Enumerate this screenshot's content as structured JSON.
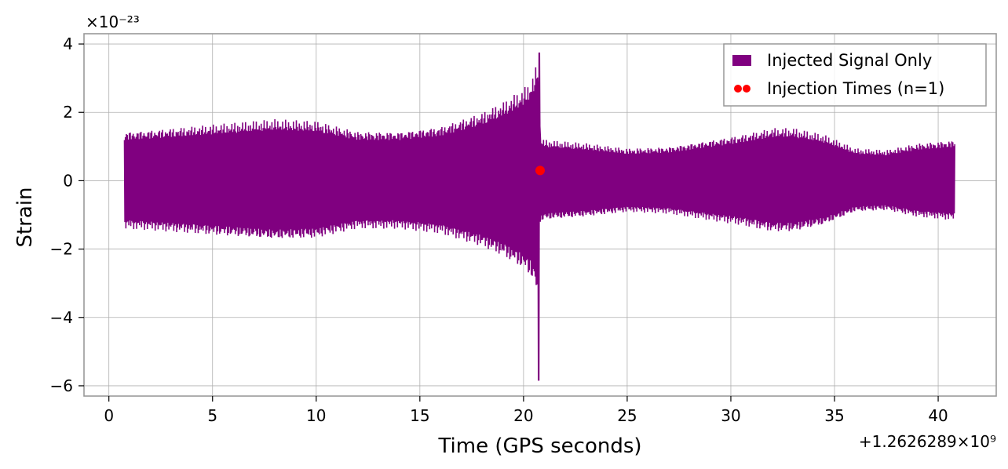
{
  "chart_data": {
    "type": "line",
    "title": "",
    "xlabel": "Time (GPS seconds)",
    "ylabel": "Strain",
    "x_offset_text": "+1.2626289×10⁹",
    "y_offset_text": "×10⁻²³",
    "xlim": [
      -1.2,
      42.8
    ],
    "ylim": [
      -6.3,
      4.3
    ],
    "x_ticks": [
      0,
      5,
      10,
      15,
      20,
      25,
      30,
      35,
      40
    ],
    "y_ticks": [
      4,
      2,
      0,
      -2,
      -4,
      -6
    ],
    "x_tick_labels": [
      "0",
      "5",
      "10",
      "15",
      "20",
      "25",
      "30",
      "35",
      "40"
    ],
    "y_tick_labels": [
      "4",
      "2",
      "0",
      "−2",
      "−4",
      "−6"
    ],
    "grid": true,
    "legend_position": "top-right",
    "series": [
      {
        "name": "Injected Signal Only",
        "color": "#800080",
        "kind": "oscillating-strain",
        "x_range": [
          0.75,
          40.8
        ],
        "envelope": {
          "t": [
            0.75,
            2,
            4,
            6,
            8,
            10,
            12,
            14,
            16,
            17,
            18,
            19,
            19.5,
            20,
            20.3,
            20.55,
            20.7,
            20.75,
            20.8,
            21,
            23,
            25,
            27,
            29,
            30.5,
            32,
            33,
            34.5,
            36,
            37.5,
            39,
            40.8
          ],
          "amplitude": [
            1.45,
            1.5,
            1.6,
            1.7,
            1.8,
            1.75,
            1.45,
            1.45,
            1.6,
            1.8,
            2.0,
            2.3,
            2.5,
            2.7,
            2.9,
            3.2,
            3.7,
            5.9,
            1.3,
            1.2,
            1.1,
            0.95,
            1.0,
            1.2,
            1.35,
            1.55,
            1.55,
            1.35,
            0.95,
            0.9,
            1.1,
            1.2
          ]
        },
        "peak": {
          "x": 20.75,
          "max": 3.75,
          "min": -5.85
        }
      },
      {
        "name": "Injection Times (n=1)",
        "color": "#ff0000",
        "kind": "scatter",
        "points": [
          {
            "x": 20.8,
            "y": 0.3
          }
        ]
      }
    ]
  }
}
